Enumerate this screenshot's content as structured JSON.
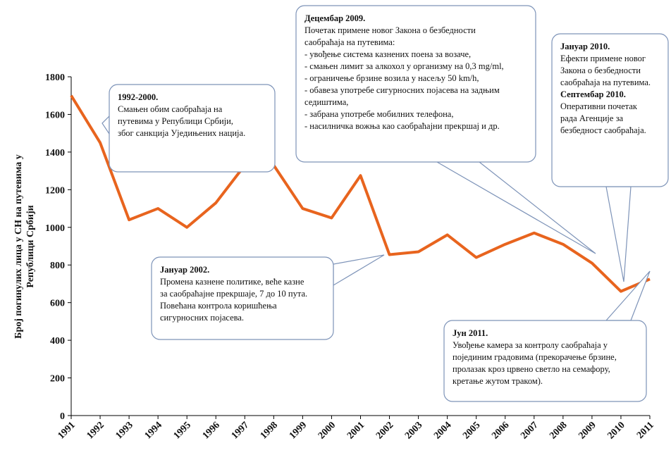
{
  "chart_data": {
    "type": "line",
    "y_label": [
      "Број погинулих лица у СН на путевима у",
      "Републици Србији"
    ],
    "x": [
      1991,
      1992,
      1993,
      1994,
      1995,
      1996,
      1997,
      1998,
      1999,
      2000,
      2001,
      2002,
      2003,
      2004,
      2005,
      2006,
      2007,
      2008,
      2009,
      2010,
      2011
    ],
    "xlim": [
      1991,
      2011
    ],
    "values": [
      1700,
      1450,
      1040,
      1100,
      1000,
      1130,
      1330,
      1330,
      1100,
      1050,
      1275,
      855,
      870,
      960,
      840,
      910,
      970,
      910,
      810,
      660,
      725
    ],
    "color": "#e8641e",
    "ylim": [
      0,
      1800
    ],
    "yticks": [
      0,
      200,
      400,
      600,
      800,
      1000,
      1200,
      1400,
      1600,
      1800
    ],
    "grid": false,
    "annotations": [
      {
        "blocks": [
          {
            "title": "1992-2000.",
            "lines": [
              "Смањен обим саобраћаја на",
              "путевима у Републици Србији,",
              "због санкција Уједињених нација."
            ]
          }
        ]
      },
      {
        "blocks": [
          {
            "title": "Децембар 2009.",
            "lines": [
              "Почетак примене новог Закона о безбедности",
              "саобраћаја на путевима:",
              "- увођење система казнених поена за возаче,",
              "- смањен лимит за алкохол у организму на 0,3 mg/ml,",
              "- ограничење брзине возила у насељу 50 km/h,",
              "- обавеза употребе сигурносних појасева на задњим",
              "седиштима,",
              "- забрана употребе мобилних телефона,",
              "- насилничка вожња као саобраћајни прекршај и др."
            ]
          }
        ]
      },
      {
        "blocks": [
          {
            "title": "Јануар 2010.",
            "lines": [
              "Ефекти примене новог",
              "Закона о безбедности",
              "саобраћаја на путевима."
            ]
          },
          {
            "title": "Септембар 2010.",
            "lines": [
              "Оперативни почетак",
              "рада Агенције за",
              "безбедност саобраћаја."
            ]
          }
        ]
      },
      {
        "blocks": [
          {
            "title": "Јануар 2002.",
            "lines": [
              "Промена казнене политике, веће казне",
              "за саобраћајне прекршаје, 7 до 10 пута.",
              "Повећана контрола коришћења",
              "сигурносних појасева."
            ]
          }
        ]
      },
      {
        "blocks": [
          {
            "title": "Јун 2011.",
            "lines": [
              "Увођење камера за контролу саобраћаја у",
              "појединим градовима (прекорачење брзине,",
              "пролазак кроз црвено светло на семафору,",
              "кретање жутом траком)."
            ]
          }
        ]
      }
    ]
  }
}
